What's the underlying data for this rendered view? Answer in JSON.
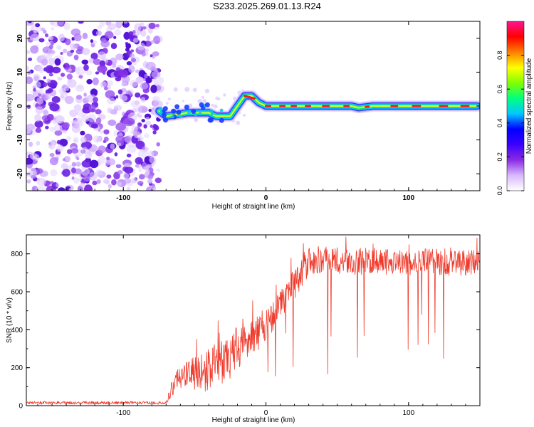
{
  "title": "S233.2025.269.01.13.R24",
  "chart_data": [
    {
      "type": "heatmap",
      "name": "spectrogram",
      "xlabel": "Height of straight line (km)",
      "ylabel": "Frequency (Hz)",
      "xlim": [
        -168,
        150
      ],
      "ylim": [
        -25,
        25
      ],
      "xticks": [
        -100,
        0,
        100
      ],
      "yticks": [
        -20,
        -10,
        0,
        10,
        20
      ],
      "noise_region_x": [
        -168,
        -75
      ],
      "ridge": {
        "x": [
          -75,
          -70,
          -62,
          -55,
          -50,
          -45,
          -40,
          -35,
          -30,
          -25,
          -20,
          -15,
          -10,
          -5,
          0,
          20,
          40,
          60,
          65,
          75,
          100,
          125,
          148
        ],
        "freq": [
          -1.5,
          -3,
          -2.5,
          -2,
          -2,
          -2,
          -2,
          -3,
          -3,
          -3,
          0,
          3,
          3,
          1,
          0,
          0,
          0,
          0,
          -0.5,
          0,
          0,
          0,
          0
        ]
      },
      "colorbar": {
        "label": "Normalized spectral amplitude",
        "ticks": [
          0.0,
          0.2,
          0.4,
          0.6,
          0.8
        ],
        "range": [
          0,
          1
        ],
        "colors": [
          "#ffffff",
          "#d9b8ff",
          "#8a2be2",
          "#3b00ff",
          "#0000ff",
          "#00c8ff",
          "#00ff80",
          "#80ff00",
          "#ffff00",
          "#ff8000",
          "#ff0000",
          "#ff1493"
        ]
      }
    },
    {
      "type": "line",
      "name": "snr",
      "xlabel": "Height of straight line (km)",
      "ylabel": "SNR (10 * v/v)",
      "xlim": [
        -168,
        150
      ],
      "ylim": [
        0,
        900
      ],
      "xticks": [
        -100,
        0,
        100
      ],
      "yticks": [
        0,
        200,
        400,
        600,
        800
      ],
      "color": "#ef3b2c",
      "envelope": {
        "x": [
          -168,
          -70,
          -64,
          -60,
          -50,
          -40,
          -30,
          -20,
          -10,
          0,
          10,
          15,
          20,
          25,
          30,
          40,
          60,
          80,
          100,
          120,
          140,
          150
        ],
        "mean": [
          15,
          15,
          130,
          150,
          170,
          190,
          230,
          300,
          350,
          420,
          520,
          600,
          640,
          700,
          760,
          770,
          760,
          760,
          760,
          760,
          750,
          760
        ],
        "amp": [
          8,
          8,
          60,
          70,
          90,
          120,
          120,
          120,
          110,
          80,
          80,
          80,
          80,
          90,
          80,
          70,
          70,
          70,
          70,
          70,
          70,
          70
        ]
      }
    }
  ]
}
